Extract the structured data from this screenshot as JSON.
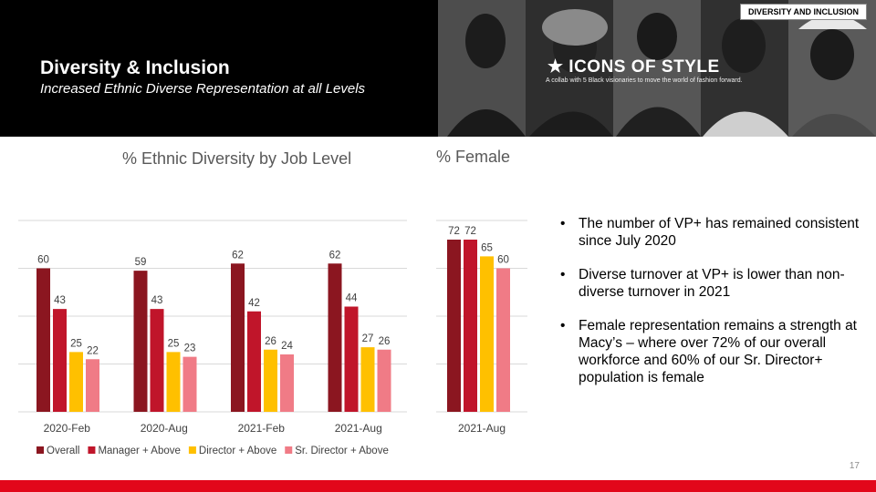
{
  "header": {
    "title": "Diversity & Inclusion",
    "subtitle": "Increased Ethnic Diverse Representation at all Levels",
    "badge": "DIVERSITY AND INCLUSION",
    "brand_title": "★ ICONS OF STYLE",
    "brand_subtitle": "A collab with 5 Black visionaries to move the world of fashion forward."
  },
  "colors": {
    "overall": "#8b1620",
    "manager": "#c0152a",
    "director": "#ffc000",
    "sr_director": "#f07b86",
    "footer": "#e2071a"
  },
  "chart_data": [
    {
      "type": "bar",
      "title": "% Ethnic Diversity by Job Level",
      "categories": [
        "2020-Feb",
        "2020-Aug",
        "2021-Feb",
        "2021-Aug"
      ],
      "series": [
        {
          "name": "Overall",
          "values": [
            60,
            59,
            62,
            62
          ]
        },
        {
          "name": "Manager + Above",
          "values": [
            43,
            43,
            42,
            44
          ]
        },
        {
          "name": "Director + Above",
          "values": [
            25,
            25,
            26,
            27
          ]
        },
        {
          "name": "Sr. Director + Above",
          "values": [
            22,
            23,
            24,
            26
          ]
        }
      ],
      "ylim": [
        0,
        80
      ],
      "grid": true,
      "legend": "bottom"
    },
    {
      "type": "bar",
      "title": "% Female",
      "categories": [
        "2021-Aug"
      ],
      "series": [
        {
          "name": "Overall",
          "values": [
            72
          ]
        },
        {
          "name": "Manager + Above",
          "values": [
            72
          ]
        },
        {
          "name": "Director + Above",
          "values": [
            65
          ]
        },
        {
          "name": "Sr. Director + Above",
          "values": [
            60
          ]
        }
      ],
      "ylim": [
        0,
        80
      ],
      "grid": true
    }
  ],
  "bullets": [
    "The number of VP+ has remained consistent since July 2020",
    "Diverse turnover at VP+ is lower than non-diverse turnover in 2021",
    "Female representation remains a strength at Macy’s – where over 72% of our overall workforce and 60% of our Sr. Director+ population is female"
  ],
  "page_number": "17"
}
